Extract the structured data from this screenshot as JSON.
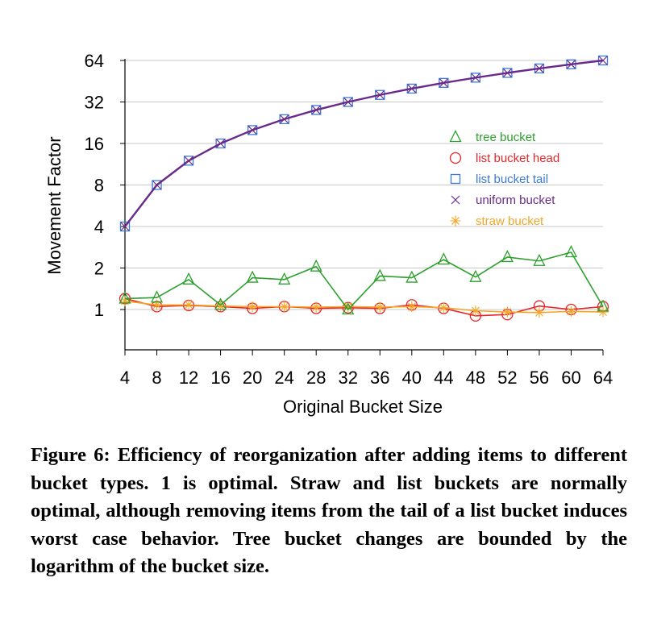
{
  "chart_data": {
    "type": "line",
    "xlabel": "Original Bucket Size",
    "ylabel": "Movement Factor",
    "x": [
      4,
      8,
      12,
      16,
      20,
      24,
      28,
      32,
      36,
      40,
      44,
      48,
      52,
      56,
      60,
      64
    ],
    "xlim": [
      4,
      64
    ],
    "yscale": "log2",
    "ylim": [
      0.5,
      64
    ],
    "yticks": [
      1,
      2,
      4,
      8,
      16,
      32,
      64
    ],
    "grid": "horizontal",
    "legend_position": "right",
    "series": [
      {
        "name": "tree bucket",
        "color": "#2ca02c",
        "marker": "triangle",
        "values": [
          1.2,
          1.22,
          1.65,
          1.08,
          1.7,
          1.65,
          2.05,
          1.0,
          1.75,
          1.7,
          2.3,
          1.72,
          2.4,
          2.25,
          2.6,
          1.05
        ]
      },
      {
        "name": "list bucket head",
        "color": "#e8262a",
        "marker": "circle",
        "values": [
          1.2,
          1.05,
          1.07,
          1.05,
          1.02,
          1.05,
          1.02,
          1.03,
          1.02,
          1.08,
          1.02,
          0.9,
          0.92,
          1.06,
          1.0,
          1.05
        ]
      },
      {
        "name": "list bucket tail",
        "color": "#3a7ad9",
        "marker": "square",
        "values": [
          4,
          8,
          12,
          16,
          20,
          24,
          28,
          32,
          36,
          40,
          44,
          48,
          52,
          56,
          60,
          64
        ]
      },
      {
        "name": "uniform bucket",
        "color": "#6a2a8a",
        "marker": "x",
        "values": [
          4,
          8,
          12,
          16,
          20,
          24,
          28,
          32,
          36,
          40,
          44,
          48,
          52,
          56,
          60,
          64
        ]
      },
      {
        "name": "straw bucket",
        "color": "#f5a623",
        "marker": "star",
        "values": [
          1.15,
          1.08,
          1.08,
          1.06,
          1.05,
          1.05,
          1.04,
          1.05,
          1.04,
          1.05,
          1.03,
          0.98,
          0.96,
          0.95,
          0.97,
          0.96
        ]
      }
    ]
  },
  "caption": "Figure 6: Efficiency of reorganization after adding items to different bucket types. 1 is optimal. Straw and list buckets are normally optimal, although removing items from the tail of a list bucket induces worst case behavior. Tree bucket changes are bounded by the logarithm of the bucket size."
}
